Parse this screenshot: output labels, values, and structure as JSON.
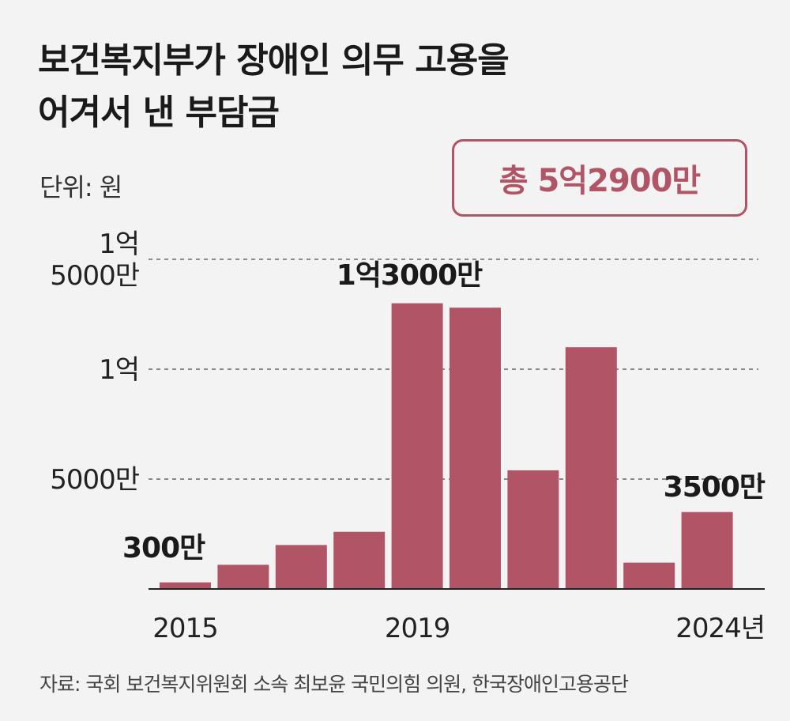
{
  "title_line1": "보건복지부가 장애인 의무 고용을",
  "title_line2": "어겨서 낸 부담금",
  "unit": "단위: 원",
  "total": "총 5억2900만",
  "source": "자료: 국회 보건복지위원회 소속 최보윤 국민의힘 의원, 한국장애인고용공단",
  "colors": {
    "bar": "#b05466",
    "badge": "#b05466",
    "grid": "#666666",
    "text": "#1a1a1a"
  },
  "chart_data": {
    "type": "bar",
    "x": [
      2015,
      2016,
      2017,
      2018,
      2019,
      2020,
      2021,
      2022,
      2023,
      2024
    ],
    "values": [
      3000000,
      11000000,
      20000000,
      26000000,
      130000000,
      128000000,
      54000000,
      110000000,
      12000000,
      35000000
    ],
    "ylim": [
      0,
      150000000
    ],
    "yticks": [
      {
        "value": 50000000,
        "label": [
          "5000만"
        ]
      },
      {
        "value": 100000000,
        "label": [
          "1억"
        ]
      },
      {
        "value": 150000000,
        "label": [
          "1억",
          "5000만"
        ]
      }
    ],
    "xtick_labels": [
      {
        "index": 0,
        "label": "2015"
      },
      {
        "index": 4,
        "label": "2019"
      },
      {
        "index": 9,
        "label": "2024년"
      }
    ],
    "data_labels": [
      {
        "index": 0,
        "label": "300만"
      },
      {
        "index": 4,
        "label": "1억3000만"
      },
      {
        "index": 9,
        "label": "3500만"
      }
    ],
    "grid": "dashed horizontal"
  }
}
